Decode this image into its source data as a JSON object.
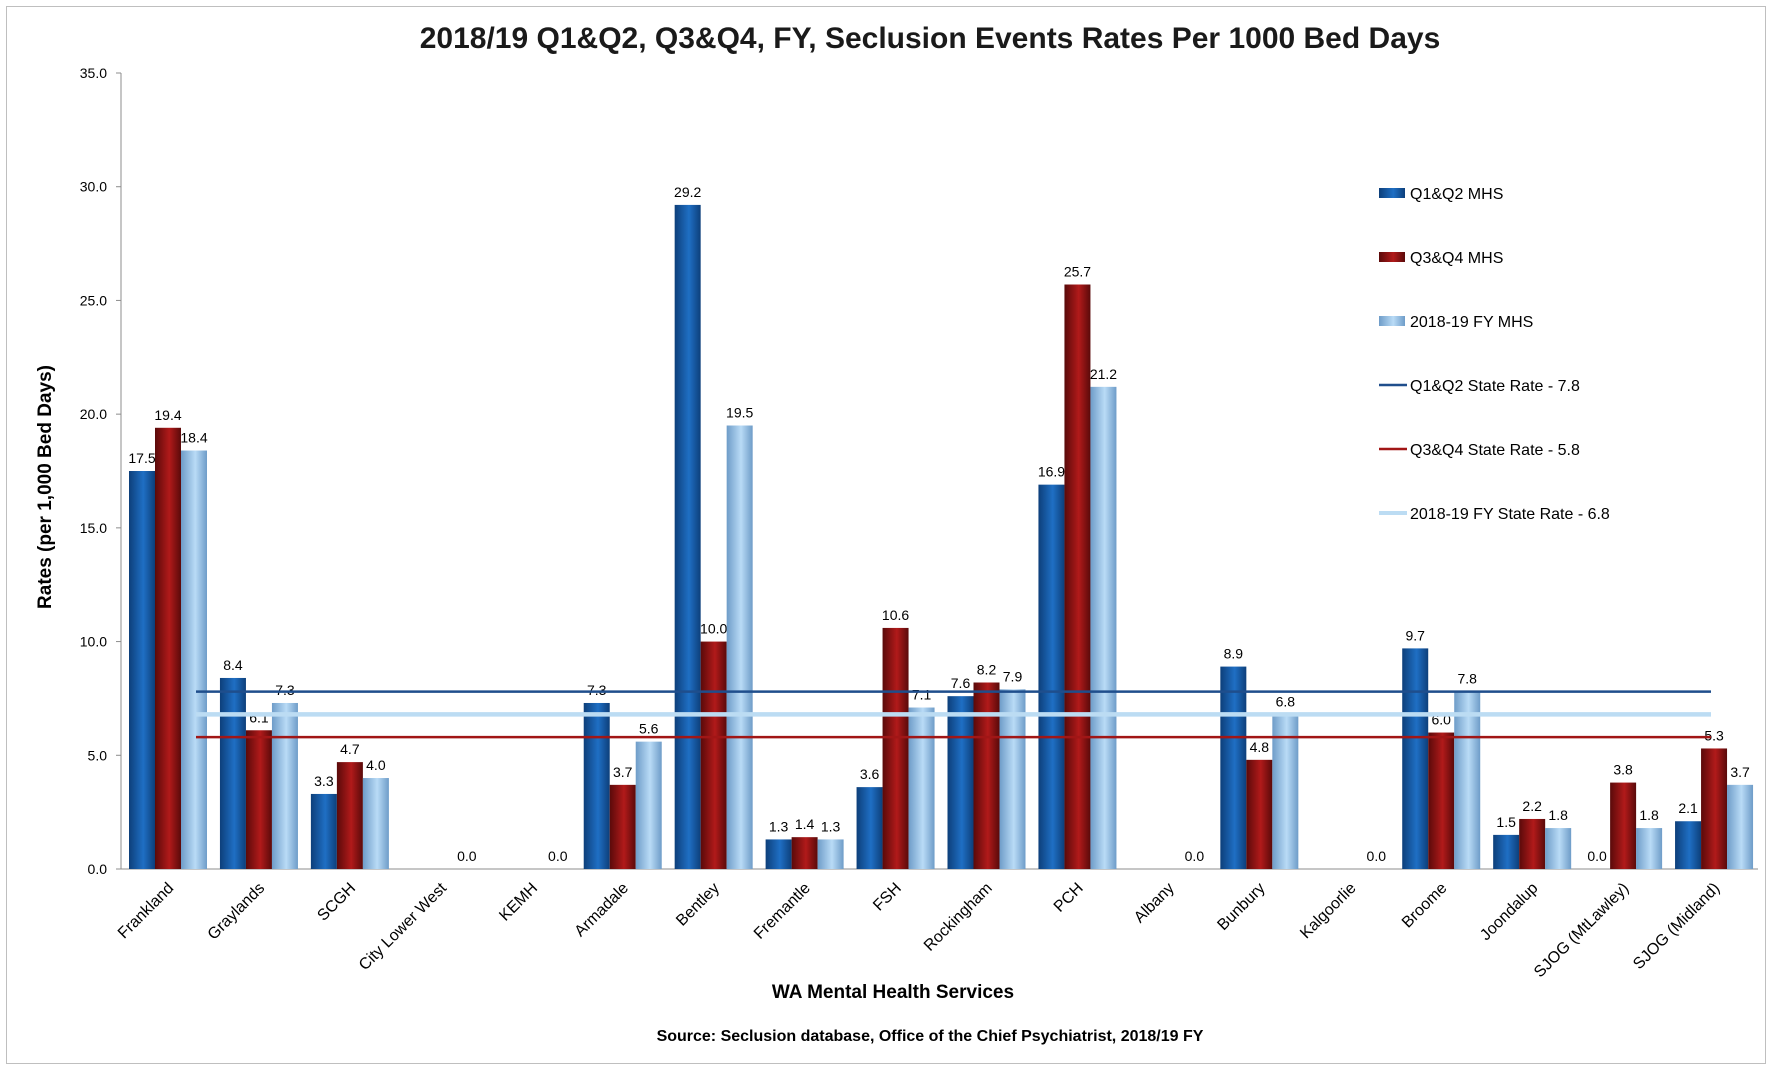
{
  "chart_data": {
    "type": "bar",
    "title": "2018/19 Q1&Q2, Q3&Q4, FY, Seclusion Events Rates Per 1000 Bed Days",
    "xlabel": "WA Mental Health Services",
    "ylabel": "Rates (per 1,000 Bed Days)",
    "source": "Source: Seclusion database, Office of the Chief Psychiatrist, 2018/19 FY",
    "ylim": [
      0,
      35
    ],
    "yticks": [
      "0.0",
      "5.0",
      "10.0",
      "15.0",
      "20.0",
      "25.0",
      "30.0",
      "35.0"
    ],
    "grid": false,
    "legend_position": "right",
    "categories": [
      "Frankland",
      "Graylands",
      "SCGH",
      "City Lower West",
      "KEMH",
      "Armadale",
      "Bentley",
      "Fremantle",
      "FSH",
      "Rockingham",
      "PCH",
      "Albany",
      "Bunbury",
      "Kalgoorlie",
      "Broome",
      "Joondalup",
      "SJOG (MtLawley)",
      "SJOG (Midland)"
    ],
    "series": [
      {
        "name": "Q1&Q2 MHS",
        "color": "#1f5fa8",
        "values": [
          17.5,
          8.4,
          3.3,
          null,
          null,
          7.3,
          29.2,
          1.3,
          3.6,
          7.6,
          16.9,
          null,
          8.9,
          null,
          9.7,
          1.5,
          0.0,
          2.1
        ]
      },
      {
        "name": "Q3&Q4 MHS",
        "color": "#a11616",
        "values": [
          19.4,
          6.1,
          4.7,
          null,
          null,
          3.7,
          10.0,
          1.4,
          10.6,
          8.2,
          25.7,
          null,
          4.8,
          null,
          6.0,
          2.2,
          3.8,
          5.3
        ]
      },
      {
        "name": "2018-19 FY MHS",
        "color": "#a9cdee",
        "values": [
          18.4,
          7.3,
          4.0,
          0.0,
          0.0,
          5.6,
          19.5,
          1.3,
          7.1,
          7.9,
          21.2,
          0.0,
          6.8,
          0.0,
          7.8,
          1.8,
          1.8,
          3.7
        ]
      }
    ],
    "data_labels": [
      [
        "17.5",
        "8.4",
        "3.3",
        "",
        "",
        "7.3",
        "29.2",
        "1.3",
        "3.6",
        "7.6",
        "16.9",
        "",
        "8.9",
        "",
        "9.7",
        "1.5",
        "0.0",
        "2.1"
      ],
      [
        "19.4",
        "6.1",
        "4.7",
        "",
        "",
        "3.7",
        "10.0",
        "1.4",
        "10.6",
        "8.2",
        "25.7",
        "",
        "4.8",
        "",
        "6.0",
        "2.2",
        "3.8",
        "5.3"
      ],
      [
        "18.4",
        "7.3",
        "4.0",
        "0.0",
        "0.0",
        "5.6",
        "19.5",
        "1.3",
        "7.1",
        "7.9",
        "21.2",
        "0.0",
        "6.8",
        "0.0",
        "7.8",
        "1.8",
        "1.8",
        "3.7"
      ]
    ],
    "state_rates": [
      {
        "name": "Q1&Q2 State Rate - 7.8",
        "value": 7.8,
        "color": "#1f4e8c"
      },
      {
        "name": "Q3&Q4 State Rate - 5.8",
        "value": 5.8,
        "color": "#a11616"
      },
      {
        "name": "2018-19 FY State Rate - 6.8",
        "value": 6.8,
        "color": "#bcdcf3"
      }
    ]
  }
}
